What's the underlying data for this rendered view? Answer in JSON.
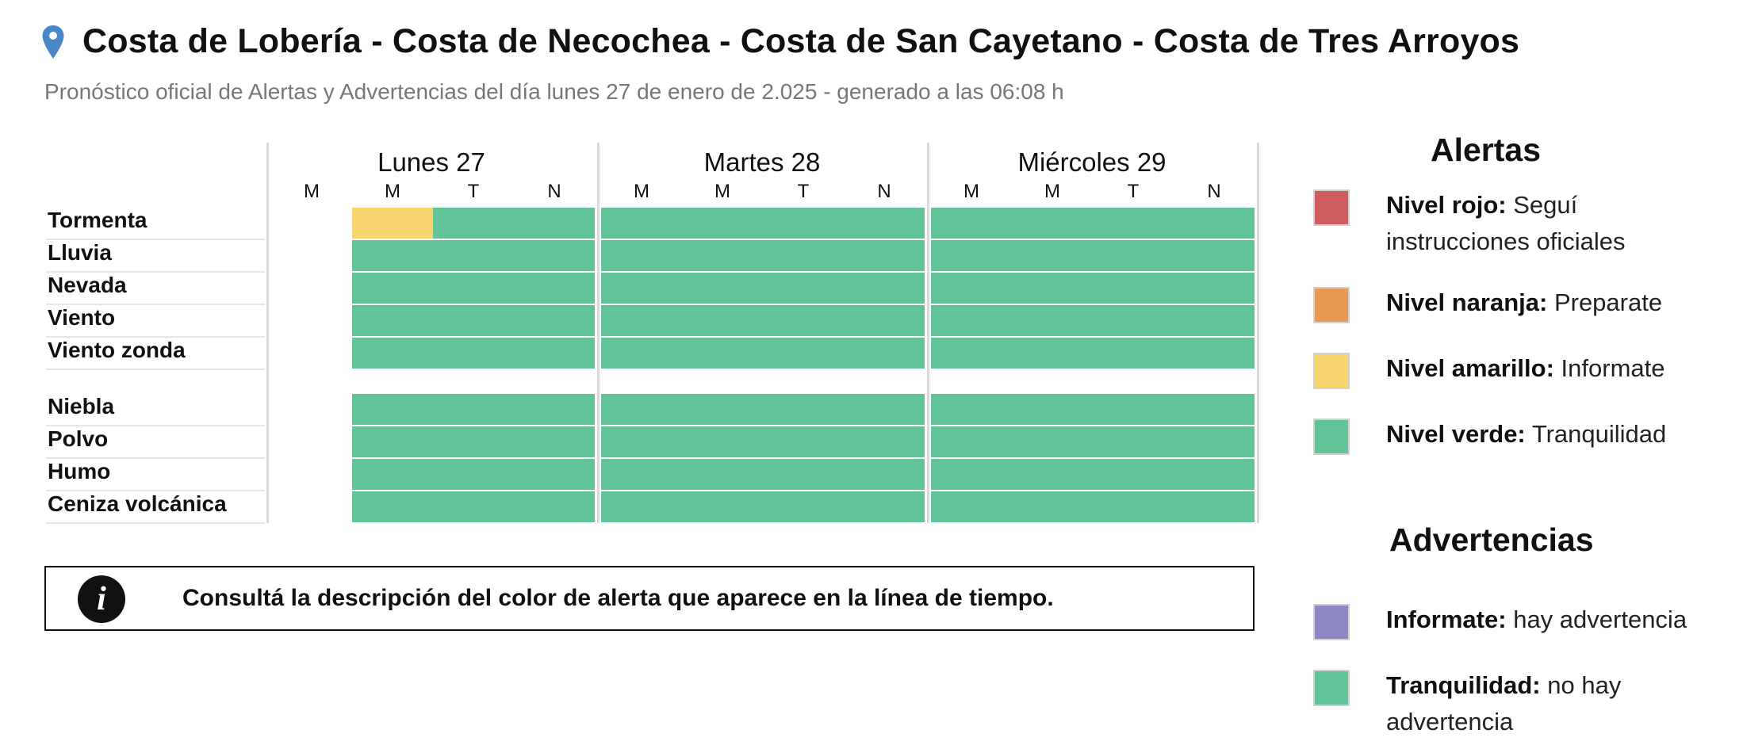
{
  "header": {
    "location_title": "Costa de Lobería - Costa de Necochea - Costa de San Cayetano - Costa de Tres Arroyos",
    "subtitle": "Pronóstico oficial de Alertas y Advertencias del día lunes 27 de enero de 2.025 - generado a las 06:08 h",
    "pin_icon": "map-pin-icon"
  },
  "timeline": {
    "days": [
      {
        "label": "Lunes 27",
        "periods": [
          "M",
          "M",
          "T",
          "N"
        ]
      },
      {
        "label": "Martes 28",
        "periods": [
          "M",
          "M",
          "T",
          "N"
        ]
      },
      {
        "label": "Miércoles 29",
        "periods": [
          "M",
          "M",
          "T",
          "N"
        ]
      }
    ],
    "phenomena_group_1": [
      "Tormenta",
      "Lluvia",
      "Nevada",
      "Viento",
      "Viento zonda"
    ],
    "phenomena_group_2": [
      "Niebla",
      "Polvo",
      "Humo",
      "Ceniza volcánica"
    ],
    "levels": {
      "Tormenta": [
        null,
        "amarillo",
        "verde",
        "verde",
        "verde",
        "verde",
        "verde",
        "verde",
        "verde",
        "verde",
        "verde",
        "verde"
      ],
      "Lluvia": [
        null,
        "verde",
        "verde",
        "verde",
        "verde",
        "verde",
        "verde",
        "verde",
        "verde",
        "verde",
        "verde",
        "verde"
      ],
      "Nevada": [
        null,
        "verde",
        "verde",
        "verde",
        "verde",
        "verde",
        "verde",
        "verde",
        "verde",
        "verde",
        "verde",
        "verde"
      ],
      "Viento": [
        null,
        "verde",
        "verde",
        "verde",
        "verde",
        "verde",
        "verde",
        "verde",
        "verde",
        "verde",
        "verde",
        "verde"
      ],
      "Viento zonda": [
        null,
        "verde",
        "verde",
        "verde",
        "verde",
        "verde",
        "verde",
        "verde",
        "verde",
        "verde",
        "verde",
        "verde"
      ],
      "Niebla": [
        null,
        "verde",
        "verde",
        "verde",
        "verde",
        "verde",
        "verde",
        "verde",
        "verde",
        "verde",
        "verde",
        "verde"
      ],
      "Polvo": [
        null,
        "verde",
        "verde",
        "verde",
        "verde",
        "verde",
        "verde",
        "verde",
        "verde",
        "verde",
        "verde",
        "verde"
      ],
      "Humo": [
        null,
        "verde",
        "verde",
        "verde",
        "verde",
        "verde",
        "verde",
        "verde",
        "verde",
        "verde",
        "verde",
        "verde"
      ],
      "Ceniza volcánica": [
        null,
        "verde",
        "verde",
        "verde",
        "verde",
        "verde",
        "verde",
        "verde",
        "verde",
        "verde",
        "verde",
        "verde"
      ]
    }
  },
  "colors": {
    "rojo": "#d05c60",
    "naranja": "#e99a52",
    "amarillo": "#f6d46e",
    "verde": "#63c49a",
    "violeta": "#8d88c4"
  },
  "info_box": {
    "icon": "info-icon",
    "icon_glyph": "i",
    "text": "Consultá la descripción del color de alerta que aparece en la línea de tiempo."
  },
  "legend": {
    "alerts_title": "Alertas",
    "alerts": [
      {
        "label": "Nivel rojo:",
        "desc": "Seguí instrucciones oficiales",
        "color": "#d05c60"
      },
      {
        "label": "Nivel naranja:",
        "desc": "Preparate",
        "color": "#e99a52"
      },
      {
        "label": "Nivel amarillo:",
        "desc": "Informate",
        "color": "#f6d46e"
      },
      {
        "label": "Nivel verde:",
        "desc": "Tranquilidad",
        "color": "#63c49a"
      }
    ],
    "warnings_title": "Advertencias",
    "warnings": [
      {
        "label": "Informate:",
        "desc": "hay advertencia",
        "color": "#8d88c4"
      },
      {
        "label": "Tranquilidad:",
        "desc": "no hay advertencia",
        "color": "#63c49a"
      }
    ]
  }
}
